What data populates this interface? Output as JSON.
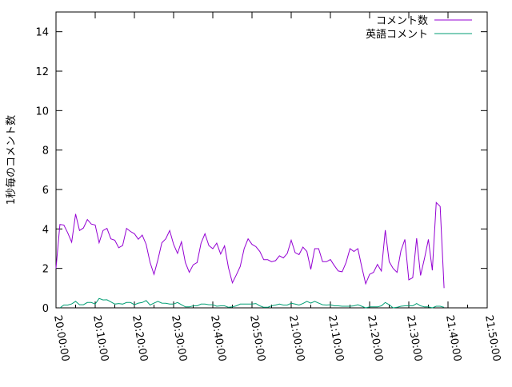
{
  "chart_data": {
    "type": "line",
    "title": "",
    "xlabel": "",
    "ylabel": "1秒毎のコメント数",
    "ylim": [
      0,
      15
    ],
    "xlim": [
      "20:00:00",
      "21:50:00"
    ],
    "yticks": [
      "0",
      "2",
      "4",
      "6",
      "8",
      "10",
      "12",
      "14"
    ],
    "xticks": [
      "20:00:00",
      "20:10:00",
      "20:20:00",
      "20:30:00",
      "20:40:00",
      "20:50:00",
      "21:00:00",
      "21:10:00",
      "21:20:00",
      "21:30:00",
      "21:40:00",
      "21:50:00"
    ],
    "grid": false,
    "legend_position": "top-right",
    "series": [
      {
        "name": "コメント数",
        "color": "#9400d3",
        "start": "20:00",
        "interval_minutes": 1,
        "values": [
          2.0,
          4.23,
          4.2,
          3.8,
          3.33,
          4.76,
          3.92,
          4.05,
          4.48,
          4.25,
          4.2,
          3.3,
          3.92,
          4.03,
          3.5,
          3.43,
          3.05,
          3.16,
          4.03,
          3.87,
          3.76,
          3.48,
          3.69,
          3.22,
          2.3,
          1.7,
          2.44,
          3.3,
          3.5,
          3.92,
          3.22,
          2.76,
          3.35,
          2.3,
          1.8,
          2.18,
          2.3,
          3.28,
          3.76,
          3.16,
          3.0,
          3.28,
          2.73,
          3.14,
          2.03,
          1.27,
          1.67,
          2.1,
          3.0,
          3.5,
          3.22,
          3.1,
          2.86,
          2.44,
          2.44,
          2.34,
          2.39,
          2.64,
          2.53,
          2.76,
          3.43,
          2.8,
          2.7,
          3.08,
          2.86,
          1.95,
          3.0,
          3.0,
          2.34,
          2.34,
          2.45,
          2.14,
          1.87,
          1.83,
          2.3,
          3.0,
          2.86,
          3.0,
          2.07,
          1.22,
          1.7,
          1.8,
          2.2,
          1.87,
          3.94,
          2.34,
          2.0,
          1.8,
          2.9,
          3.47,
          1.42,
          1.53,
          3.53,
          1.64,
          2.5,
          3.47,
          1.9,
          5.34,
          5.14,
          1.0
        ]
      },
      {
        "name": "英語コメント",
        "color": "#009e73",
        "start": "20:01",
        "interval_minutes": 1,
        "values": [
          0,
          0.14,
          0.14,
          0.2,
          0.33,
          0.16,
          0.16,
          0.27,
          0.27,
          0.19,
          0.48,
          0.4,
          0.41,
          0.3,
          0.19,
          0.22,
          0.19,
          0.27,
          0.27,
          0.16,
          0.24,
          0.27,
          0.37,
          0.14,
          0.24,
          0.33,
          0.24,
          0.23,
          0.19,
          0.19,
          0.27,
          0.16,
          0.05,
          0.05,
          0.1,
          0.1,
          0.19,
          0.19,
          0.16,
          0.16,
          0.08,
          0.1,
          0.1,
          0.03,
          0.05,
          0.1,
          0.19,
          0.19,
          0.19,
          0.19,
          0.22,
          0.1,
          0.03,
          0.03,
          0.1,
          0.14,
          0.19,
          0.14,
          0.14,
          0.23,
          0.19,
          0.14,
          0.22,
          0.33,
          0.24,
          0.33,
          0.24,
          0.16,
          0.14,
          0.16,
          0.1,
          0.1,
          0.08,
          0.08,
          0.08,
          0.1,
          0.16,
          0.08,
          0,
          0.05,
          0.05,
          0.05,
          0.1,
          0.27,
          0.16,
          0,
          0.03,
          0.08,
          0.1,
          0.1,
          0.1,
          0.22,
          0.1,
          0.05,
          0.05,
          0,
          0.08,
          0.08,
          0.03
        ]
      }
    ]
  }
}
